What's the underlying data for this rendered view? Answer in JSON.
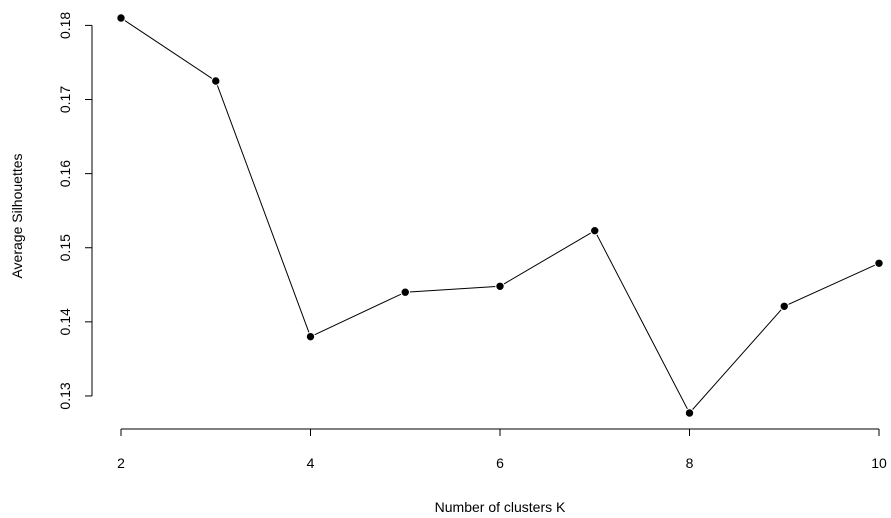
{
  "chart_data": {
    "type": "line",
    "title": "",
    "xlabel": "Number of clusters K",
    "ylabel": "Average Silhouettes",
    "x": [
      2,
      3,
      4,
      5,
      6,
      7,
      8,
      9,
      10
    ],
    "series": [
      {
        "values": [
          0.181,
          0.1725,
          0.138,
          0.144,
          0.1448,
          0.1523,
          0.1277,
          0.1421,
          0.1479
        ]
      }
    ],
    "x_ticks": [
      2,
      4,
      6,
      8,
      10
    ],
    "x_tick_labels": [
      "2",
      "4",
      "6",
      "8",
      "10"
    ],
    "y_ticks": [
      0.13,
      0.14,
      0.15,
      0.16,
      0.17,
      0.18
    ],
    "y_tick_labels": [
      "0.13",
      "0.14",
      "0.15",
      "0.16",
      "0.17",
      "0.18"
    ],
    "xlim": [
      2,
      10
    ],
    "ylim": [
      0.1277,
      0.181
    ],
    "grid": false,
    "legend": "none",
    "colors": {
      "line": "#000000",
      "marker": "#000000",
      "axis": "#000000"
    }
  }
}
